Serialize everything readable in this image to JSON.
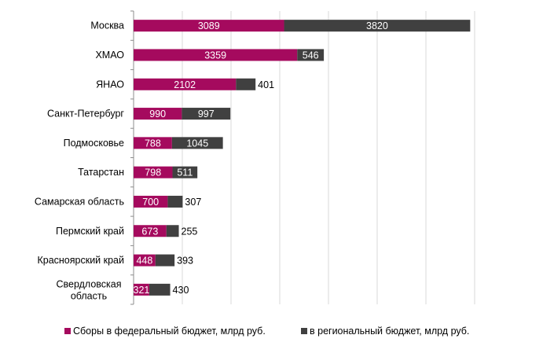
{
  "chart_data": {
    "type": "bar",
    "orientation": "horizontal",
    "stacked": true,
    "categories": [
      "Москва",
      "ХМАО",
      "ЯНАО",
      "Санкт-Петербург",
      "Подмосковье",
      "Татарстан",
      "Самарская область",
      "Пермский край",
      "Красноярский край",
      "Свердловская область"
    ],
    "series": [
      {
        "name": "Сборы в федеральный бюджет, млрд руб.",
        "color": "#a50a5e",
        "values": [
          3089,
          3359,
          2102,
          990,
          788,
          798,
          700,
          673,
          448,
          321
        ]
      },
      {
        "name": "в региональный бюджет, млрд руб.",
        "color": "#404040",
        "values": [
          3820,
          546,
          401,
          997,
          1045,
          511,
          307,
          255,
          393,
          430
        ]
      }
    ],
    "xlim": [
      0,
      7000
    ],
    "grid": true,
    "x_axis_tick_labels_shown": false,
    "data_labels": true,
    "legend_position": "bottom"
  }
}
